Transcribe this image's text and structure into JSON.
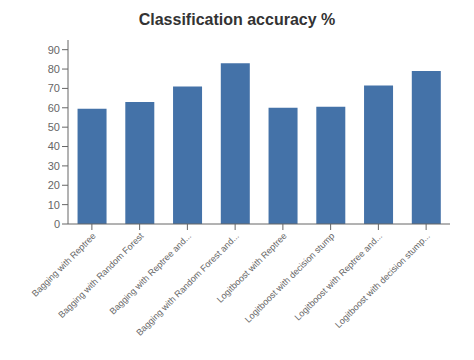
{
  "chart_data": {
    "type": "bar",
    "title": "Classification accuracy %",
    "categories": [
      "Bagging with Reptree",
      "Bagging with Random Forest",
      "Bagging with Reptree and...",
      "Bagging with Random Forest and...",
      "Logitboost with Reptree",
      "Logitboost with decision stump",
      "Logitboost with Reptree and...",
      "Logitboost with decision stump..."
    ],
    "values": [
      59.5,
      63.0,
      71.0,
      83.0,
      60.0,
      60.5,
      71.5,
      79.0
    ],
    "color": "#4472a8",
    "ylim": [
      0,
      95
    ],
    "yticks": [
      0,
      10,
      20,
      30,
      40,
      50,
      60,
      70,
      80,
      90
    ],
    "grid": false
  }
}
